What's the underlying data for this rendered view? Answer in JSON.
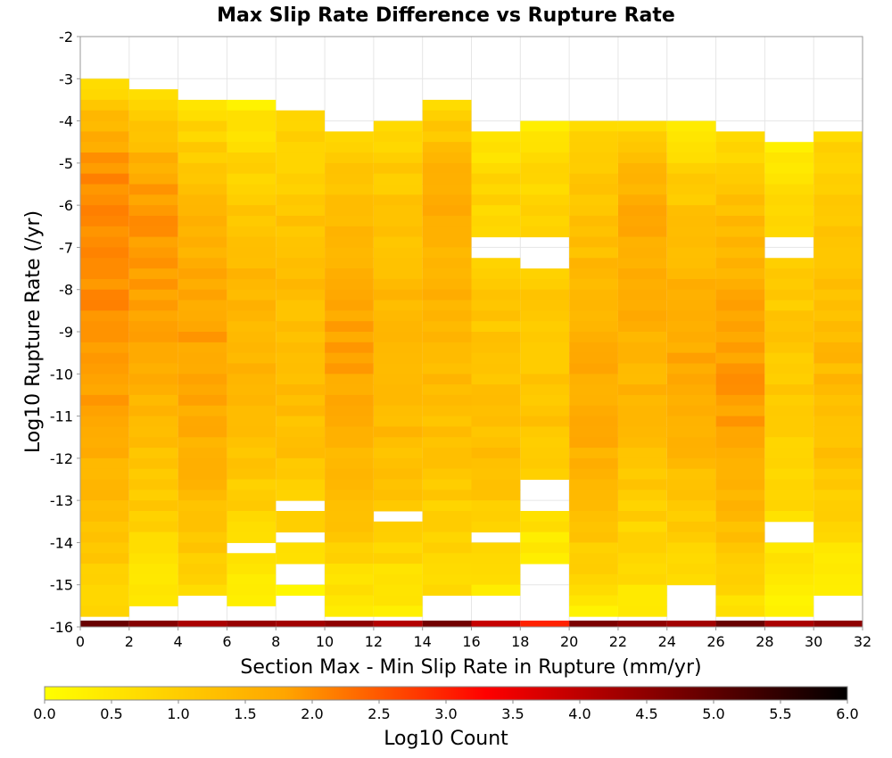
{
  "chart_data": {
    "type": "heatmap",
    "title": "Max Slip Rate Difference vs Rupture Rate",
    "xlabel": "Section Max - Min Slip Rate in Rupture (mm/yr)",
    "ylabel": "Log10 Rupture Rate (/yr)",
    "xlim": [
      0,
      32
    ],
    "ylim": [
      -16,
      -2
    ],
    "x_ticks": [
      "0",
      "2",
      "4",
      "6",
      "8",
      "10",
      "12",
      "14",
      "16",
      "18",
      "20",
      "22",
      "24",
      "26",
      "28",
      "30",
      "32"
    ],
    "y_ticks": [
      "-2",
      "-3",
      "-4",
      "-5",
      "-6",
      "-7",
      "-8",
      "-9",
      "-10",
      "-11",
      "-12",
      "-13",
      "-14",
      "-15",
      "-16"
    ],
    "x_bin_width": 2,
    "y_bin_height": 0.25,
    "grid": true,
    "colorbar": {
      "label": "Log10 Count",
      "min": 0.0,
      "max": 6.0,
      "ticks": [
        "0.0",
        "0.5",
        "1.0",
        "1.5",
        "2.0",
        "2.5",
        "3.0",
        "3.5",
        "4.0",
        "4.5",
        "5.0",
        "5.5",
        "6.0"
      ],
      "colors": [
        "#ffff00",
        "#ffa500",
        "#ff0000",
        "#000000"
      ],
      "stops": [
        0.0,
        0.3,
        0.55,
        1.0
      ]
    },
    "columns": [
      {
        "x": 1,
        "y_top": -3.0,
        "y_bottom": -16,
        "peak_y": -5.5,
        "peak": 2.1,
        "top_val": 0.2,
        "bottom_val": 0.8,
        "bottom_row_val": 4.9,
        "gaps": []
      },
      {
        "x": 3,
        "y_top": -3.25,
        "y_bottom": -15.5,
        "peak_y": -6.0,
        "peak": 1.9,
        "top_val": 0.3,
        "bottom_val": 0.3,
        "bottom_row_val": 4.6,
        "gaps": []
      },
      {
        "x": 5,
        "y_top": -3.5,
        "y_bottom": -15.25,
        "peak_y": -8.5,
        "peak": 1.8,
        "top_val": 0.3,
        "bottom_val": 0.7,
        "bottom_row_val": 4.2,
        "gaps": []
      },
      {
        "x": 7,
        "y_top": -3.5,
        "y_bottom": -15.5,
        "peak_y": -8.5,
        "peak": 1.5,
        "top_val": 0.1,
        "bottom_val": 0.2,
        "bottom_row_val": 4.4,
        "gaps": [
          [
            -14.25,
            -14.0
          ]
        ]
      },
      {
        "x": 9,
        "y_top": -3.75,
        "y_bottom": -15.25,
        "peak_y": -9.5,
        "peak": 1.4,
        "top_val": 0.6,
        "bottom_val": 0.2,
        "bottom_row_val": 4.3,
        "gaps": [
          [
            -13.25,
            -13.0
          ],
          [
            -14.0,
            -13.75
          ],
          [
            -15.0,
            -14.5
          ]
        ]
      },
      {
        "x": 11,
        "y_top": -4.25,
        "y_bottom": -16,
        "peak_y": -9.0,
        "peak": 1.8,
        "top_val": 0.5,
        "bottom_val": 0.3,
        "bottom_row_val": 4.5,
        "gaps": []
      },
      {
        "x": 13,
        "y_top": -4.0,
        "y_bottom": -15.75,
        "peak_y": -9.0,
        "peak": 1.5,
        "top_val": 0.6,
        "bottom_val": 0.3,
        "bottom_row_val": 4.1,
        "gaps": [
          [
            -13.5,
            -13.25
          ]
        ]
      },
      {
        "x": 15,
        "y_top": -3.5,
        "y_bottom": -15.25,
        "peak_y": -5.5,
        "peak": 1.6,
        "top_val": 0.4,
        "bottom_val": 0.6,
        "bottom_row_val": 4.8,
        "gaps": []
      },
      {
        "x": 17,
        "y_top": -4.25,
        "y_bottom": -15.25,
        "peak_y": -11.0,
        "peak": 1.3,
        "top_val": 0.4,
        "bottom_val": 0.4,
        "bottom_row_val": 3.9,
        "gaps": [
          [
            -7.25,
            -6.75
          ],
          [
            -14.0,
            -13.75
          ]
        ]
      },
      {
        "x": 19,
        "y_top": -4.0,
        "y_bottom": -14.5,
        "peak_y": -10.0,
        "peak": 1.2,
        "top_val": 0.4,
        "bottom_val": 0.2,
        "bottom_row_val": 3.0,
        "gaps": [
          [
            -7.5,
            -6.75
          ],
          [
            -13.25,
            -12.5
          ]
        ]
      },
      {
        "x": 21,
        "y_top": -4.0,
        "y_bottom": -16,
        "peak_y": -10.5,
        "peak": 1.7,
        "top_val": 0.5,
        "bottom_val": 0.3,
        "bottom_row_val": 4.7,
        "gaps": []
      },
      {
        "x": 23,
        "y_top": -4.0,
        "y_bottom": -16,
        "peak_y": -6.0,
        "peak": 1.7,
        "top_val": 0.3,
        "bottom_val": 0.4,
        "bottom_row_val": 4.5,
        "gaps": []
      },
      {
        "x": 25,
        "y_top": -4.0,
        "y_bottom": -15.0,
        "peak_y": -9.0,
        "peak": 1.7,
        "top_val": 0.2,
        "bottom_val": 0.5,
        "bottom_row_val": 4.3,
        "gaps": []
      },
      {
        "x": 27,
        "y_top": -4.25,
        "y_bottom": -16,
        "peak_y": -9.75,
        "peak": 1.9,
        "top_val": 0.4,
        "bottom_val": 0.5,
        "bottom_row_val": 4.9,
        "gaps": []
      },
      {
        "x": 29,
        "y_top": -4.5,
        "y_bottom": -15.75,
        "peak_y": -9.0,
        "peak": 1.1,
        "top_val": 0.2,
        "bottom_val": 0.2,
        "bottom_row_val": 4.2,
        "gaps": [
          [
            -7.25,
            -6.75
          ],
          [
            -14.0,
            -13.5
          ]
        ]
      },
      {
        "x": 31,
        "y_top": -4.25,
        "y_bottom": -15.25,
        "peak_y": -9.5,
        "peak": 1.4,
        "top_val": 0.6,
        "bottom_val": 0.2,
        "bottom_row_val": 4.5,
        "gaps": []
      }
    ]
  }
}
